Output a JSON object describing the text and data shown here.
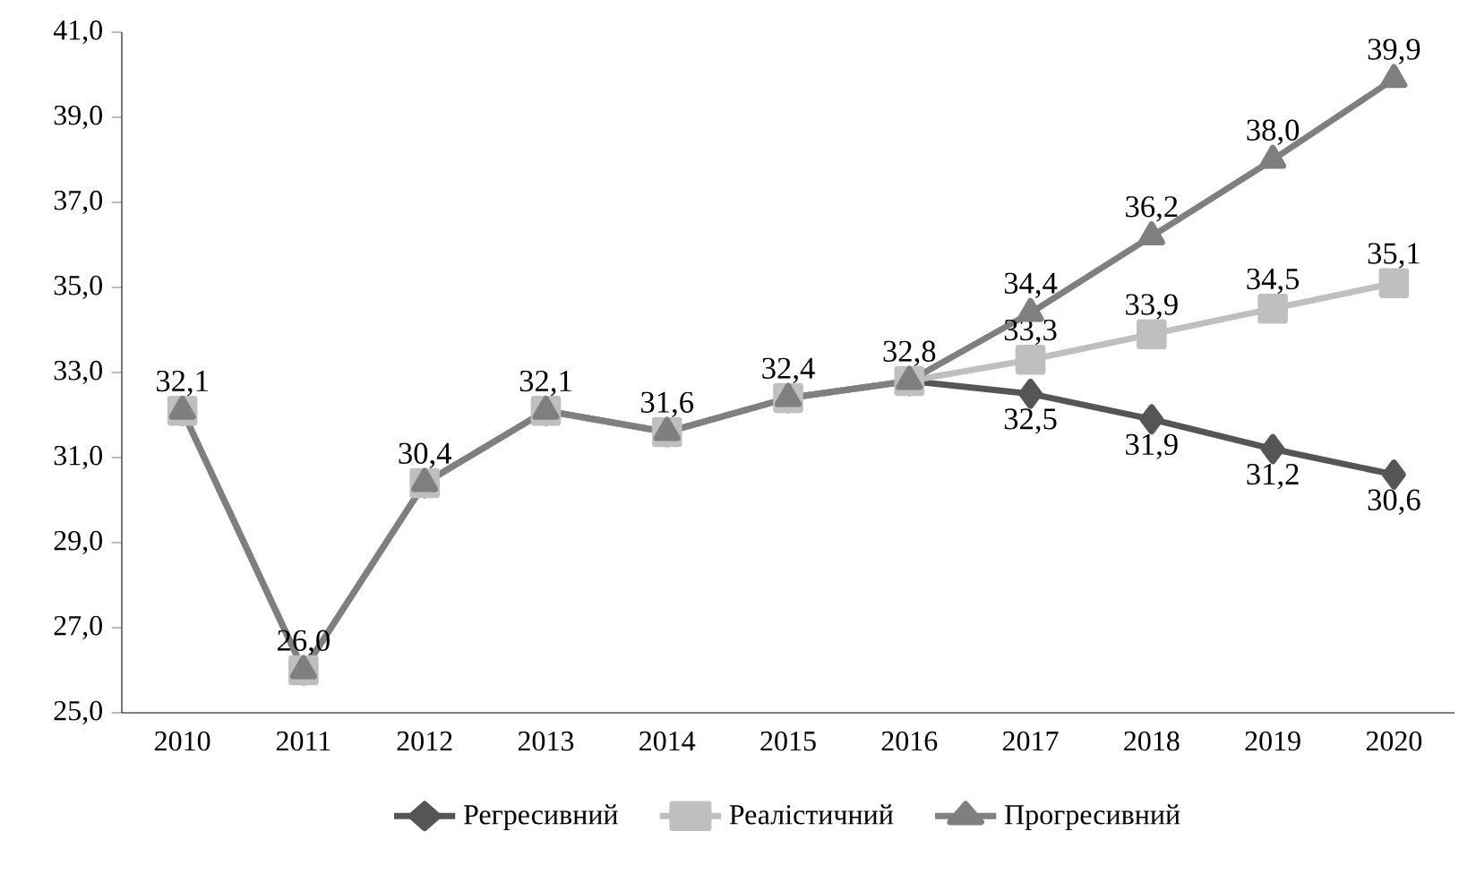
{
  "chart_data": {
    "type": "line",
    "categories": [
      "2010",
      "2011",
      "2012",
      "2013",
      "2014",
      "2015",
      "2016",
      "2017",
      "2018",
      "2019",
      "2020"
    ],
    "ylim": [
      25,
      41
    ],
    "yticks": [
      {
        "value": 25,
        "label": "25,0"
      },
      {
        "value": 27,
        "label": "27,0"
      },
      {
        "value": 29,
        "label": "29,0"
      },
      {
        "value": 31,
        "label": "31,0"
      },
      {
        "value": 33,
        "label": "33,0"
      },
      {
        "value": 35,
        "label": "35,0"
      },
      {
        "value": 37,
        "label": "37,0"
      },
      {
        "value": 39,
        "label": "39,0"
      },
      {
        "value": 41,
        "label": "41,0"
      }
    ],
    "grid": false,
    "legend": "bottom",
    "line_style": "solid",
    "series": [
      {
        "name": "Регресивний",
        "color": "#555555",
        "marker": "diamond",
        "values": [
          32.1,
          26.0,
          30.4,
          32.1,
          31.6,
          32.4,
          32.8,
          32.5,
          31.9,
          31.2,
          30.6
        ],
        "value_labels": [
          null,
          null,
          null,
          null,
          null,
          null,
          null,
          "32,5",
          "31,9",
          "31,2",
          "30,6"
        ]
      },
      {
        "name": "Реалістичний",
        "color": "#bfbfbf",
        "marker": "square",
        "values": [
          32.1,
          26.0,
          30.4,
          32.1,
          31.6,
          32.4,
          32.8,
          33.3,
          33.9,
          34.5,
          35.1
        ],
        "value_labels": [
          null,
          null,
          null,
          null,
          null,
          null,
          null,
          "33,3",
          "33,9",
          "34,5",
          "35,1"
        ]
      },
      {
        "name": "Прогресивний",
        "color": "#7f7f7f",
        "marker": "triangle",
        "values": [
          32.1,
          26.0,
          30.4,
          32.1,
          31.6,
          32.4,
          32.8,
          34.4,
          36.2,
          38.0,
          39.9
        ],
        "value_labels": [
          "32,1",
          "26,0",
          "30,4",
          "32,1",
          "31,6",
          "32,4",
          "32,8",
          "34,4",
          "36,2",
          "38,0",
          "39,9"
        ]
      }
    ]
  }
}
